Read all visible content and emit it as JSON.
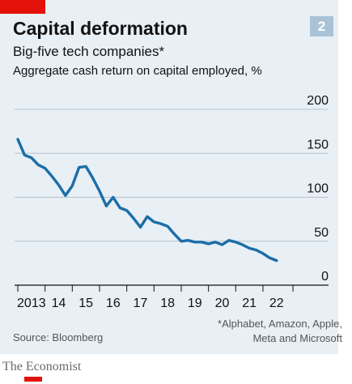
{
  "badge": "2",
  "title": "Capital deformation",
  "subtitle": "Big-five tech companies*",
  "source": "Source: Bloomberg",
  "footnote_lines": [
    "*Alphabet, Amazon, Apple,",
    "Meta and Microsoft"
  ],
  "brand": "The Economist",
  "colors": {
    "line": "#1b6ea7",
    "panel": "#e8eff5",
    "accent": "#e3120b",
    "badge": "#a9c3d6"
  },
  "chart_data": {
    "type": "line",
    "title": "Capital deformation",
    "subtitle": "Big-five tech companies*",
    "ylabel": "Aggregate cash return on capital employed, %",
    "xlabel": "",
    "ylim": [
      0,
      200
    ],
    "yticks": [
      0,
      50,
      100,
      150,
      200
    ],
    "ytick_labels": [
      "0",
      "50",
      "100",
      "150",
      "200"
    ],
    "xlim": [
      2013,
      2023.1
    ],
    "xticks": [
      2013,
      2014,
      2015,
      2016,
      2017,
      2018,
      2019,
      2020,
      2021,
      2022
    ],
    "xtick_labels": [
      "2013",
      "14",
      "15",
      "16",
      "17",
      "18",
      "19",
      "20",
      "21",
      "22"
    ],
    "grid": "horizontal",
    "series": [
      {
        "name": "",
        "x": [
          2013.0,
          2013.25,
          2013.5,
          2013.75,
          2014.0,
          2014.25,
          2014.5,
          2014.75,
          2015.0,
          2015.25,
          2015.5,
          2015.75,
          2016.0,
          2016.25,
          2016.5,
          2016.75,
          2017.0,
          2017.25,
          2017.5,
          2017.75,
          2018.0,
          2018.25,
          2018.5,
          2018.75,
          2019.0,
          2019.25,
          2019.5,
          2019.75,
          2020.0,
          2020.25,
          2020.5,
          2020.75,
          2021.0,
          2021.25,
          2021.5,
          2021.75,
          2022.0,
          2022.25,
          2022.5
        ],
        "y": [
          166,
          148,
          145,
          137,
          133,
          124,
          114,
          102,
          113,
          134,
          135,
          122,
          107,
          90,
          100,
          88,
          85,
          76,
          66,
          78,
          72,
          70,
          67,
          58,
          50,
          51,
          49,
          49,
          47,
          49,
          46,
          51,
          49,
          46,
          42,
          40,
          36,
          31,
          28
        ]
      }
    ]
  }
}
